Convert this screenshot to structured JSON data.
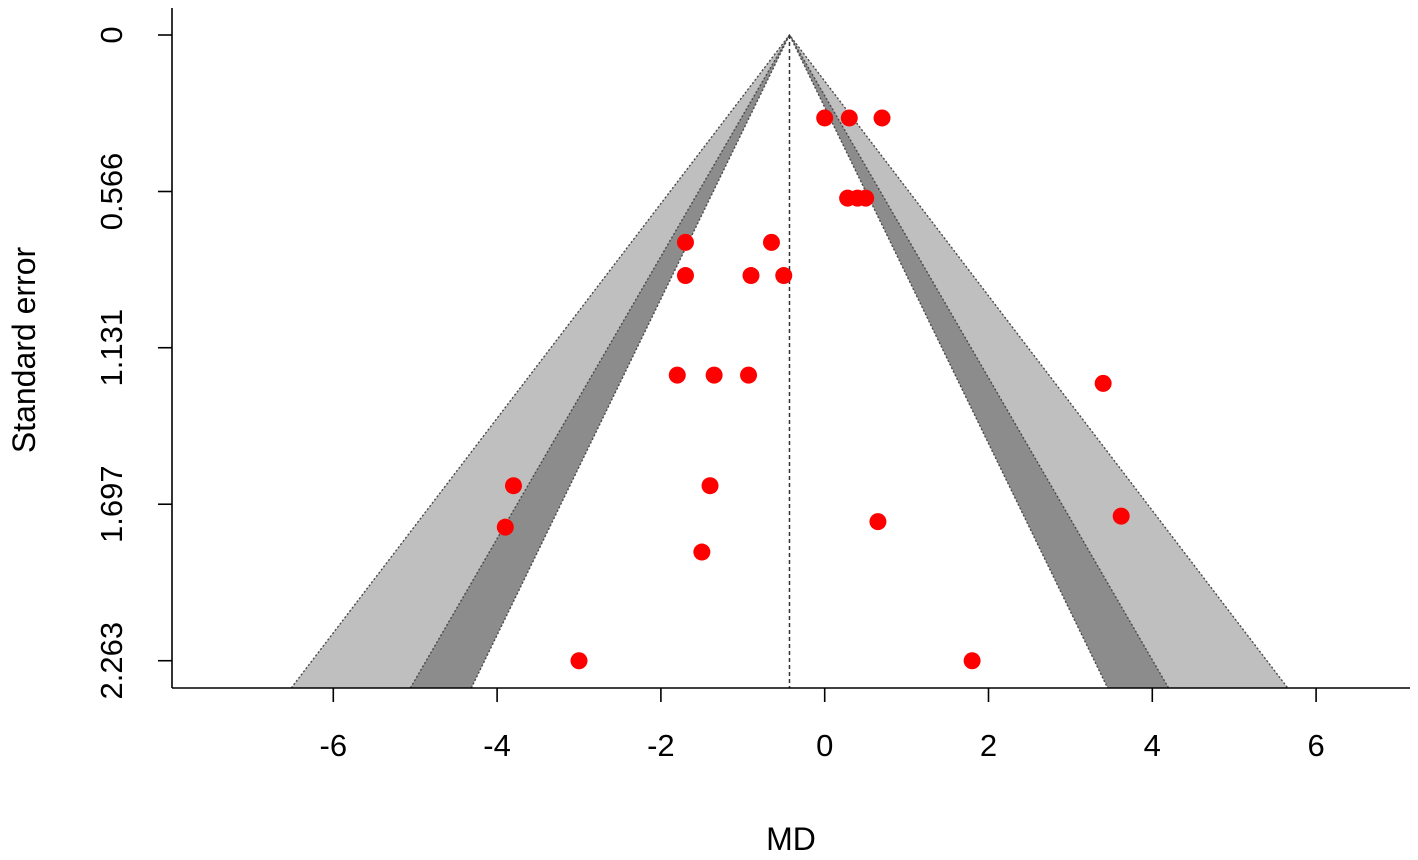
{
  "chart_data": {
    "type": "scatter",
    "subtype": "contour-enhanced funnel plot",
    "xlabel": "MD",
    "ylabel": "Standard error",
    "xlim": [
      -7.9,
      7.0
    ],
    "ylim": [
      0,
      2.35
    ],
    "y_reversed": true,
    "x_ticks": [
      -6,
      -4,
      -2,
      0,
      2,
      4,
      6
    ],
    "x_tick_labels": [
      "-6",
      "-4",
      "-2",
      "0",
      "2",
      "4",
      "6"
    ],
    "y_ticks": [
      0,
      0.566,
      1.131,
      1.697,
      2.263
    ],
    "y_tick_labels": [
      "0",
      "0.566",
      "1.131",
      "1.697",
      "2.263"
    ],
    "center_estimate": -0.43,
    "contour_levels": [
      {
        "z": 1.645,
        "color": "#ffffff"
      },
      {
        "z": 1.96,
        "color": "#8c8c8c"
      },
      {
        "z": 2.576,
        "color": "#bfbfbf"
      }
    ],
    "point_color": "#ff0000",
    "points": [
      {
        "x": 0.0,
        "y": 0.3
      },
      {
        "x": 0.3,
        "y": 0.3
      },
      {
        "x": 0.7,
        "y": 0.3
      },
      {
        "x": 0.28,
        "y": 0.59
      },
      {
        "x": 0.4,
        "y": 0.59
      },
      {
        "x": 0.5,
        "y": 0.59
      },
      {
        "x": -1.7,
        "y": 0.75
      },
      {
        "x": -0.65,
        "y": 0.75
      },
      {
        "x": -1.7,
        "y": 0.87
      },
      {
        "x": -0.9,
        "y": 0.87
      },
      {
        "x": -0.5,
        "y": 0.87
      },
      {
        "x": -1.8,
        "y": 1.23
      },
      {
        "x": -1.35,
        "y": 1.23
      },
      {
        "x": -0.93,
        "y": 1.23
      },
      {
        "x": 3.4,
        "y": 1.26
      },
      {
        "x": -3.8,
        "y": 1.63
      },
      {
        "x": -1.4,
        "y": 1.63
      },
      {
        "x": -3.9,
        "y": 1.78
      },
      {
        "x": 0.65,
        "y": 1.76
      },
      {
        "x": 3.62,
        "y": 1.74
      },
      {
        "x": -1.5,
        "y": 1.87
      },
      {
        "x": -3.0,
        "y": 2.263
      },
      {
        "x": 1.8,
        "y": 2.263
      }
    ]
  }
}
